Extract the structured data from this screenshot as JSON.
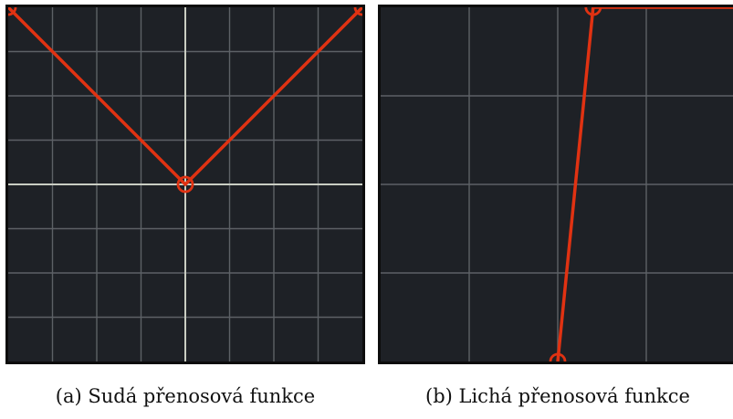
{
  "figure_a": {
    "caption": "(a) Sudá přenosová funkce",
    "curve_points": [
      [
        -1,
        1
      ],
      [
        0,
        0
      ],
      [
        1,
        1
      ]
    ],
    "handles": [
      [
        -1,
        1
      ],
      [
        0,
        0
      ],
      [
        1,
        1
      ]
    ],
    "grid_divisions": 8,
    "center_axes": true
  },
  "figure_b": {
    "caption": "(b) Lichá přenosová funkce",
    "curve_points": [
      [
        0,
        -1
      ],
      [
        0.2,
        1
      ],
      [
        1,
        1
      ]
    ],
    "handles": [
      [
        0,
        -1
      ],
      [
        0.2,
        1
      ]
    ],
    "grid_divisions": 4,
    "center_axes": false
  },
  "colors": {
    "background": "#1e2126",
    "grid": "#5d6166",
    "axis": "#c9cdc2",
    "curve": "#e03212",
    "border": "#0c0c0c"
  }
}
